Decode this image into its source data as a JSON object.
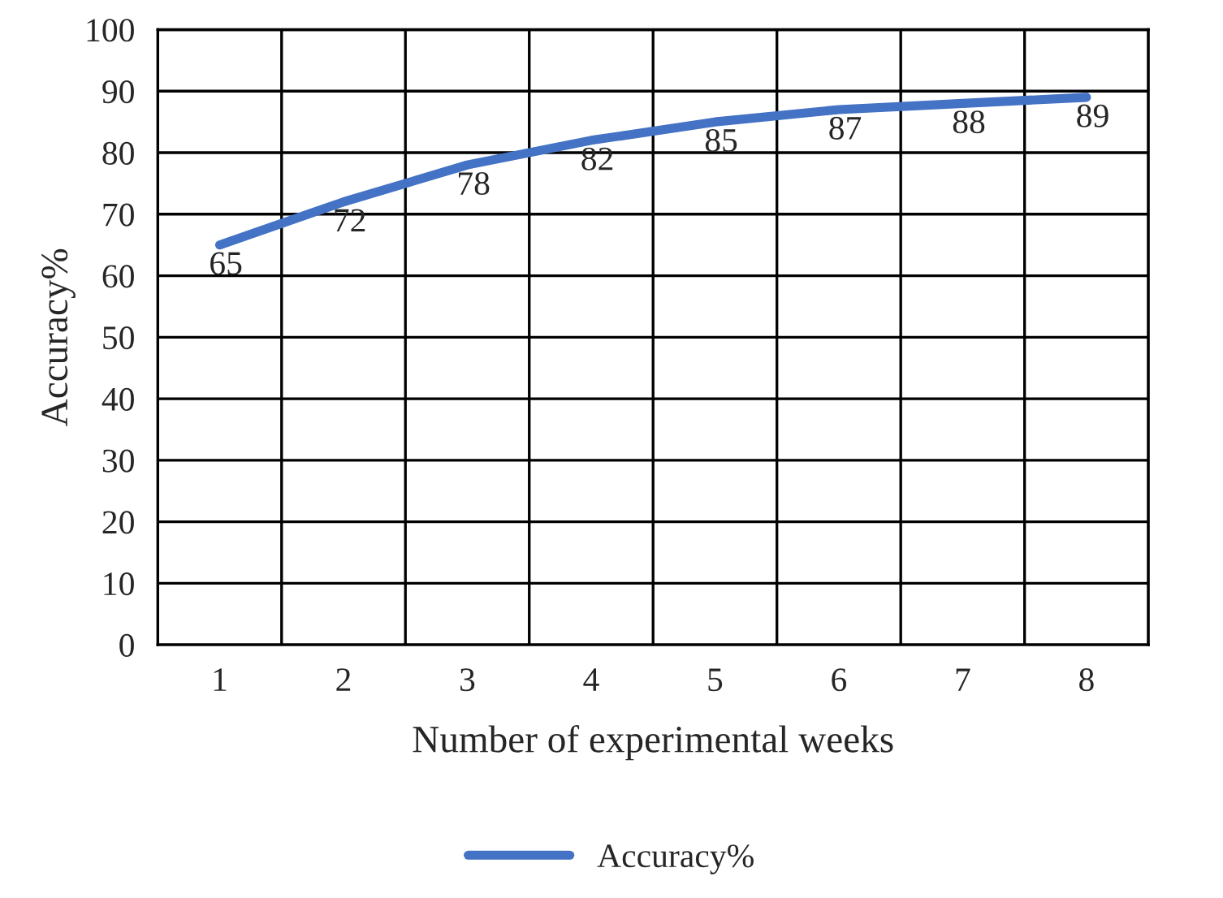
{
  "chart_data": {
    "type": "line",
    "xlabel": "Number of experimental weeks",
    "ylabel": "Accuracy%",
    "categories": [
      "1",
      "2",
      "3",
      "4",
      "5",
      "6",
      "7",
      "8"
    ],
    "series": [
      {
        "name": "Accuracy%",
        "color": "#4472c4",
        "values": [
          65,
          72,
          78,
          82,
          85,
          87,
          88,
          89
        ]
      }
    ],
    "ylim": [
      0,
      100
    ],
    "yticks": [
      0,
      10,
      20,
      30,
      40,
      50,
      60,
      70,
      80,
      90,
      100
    ],
    "grid": true,
    "data_labels": true,
    "legend": "bottom",
    "marker": "none",
    "line_style": "solid"
  }
}
